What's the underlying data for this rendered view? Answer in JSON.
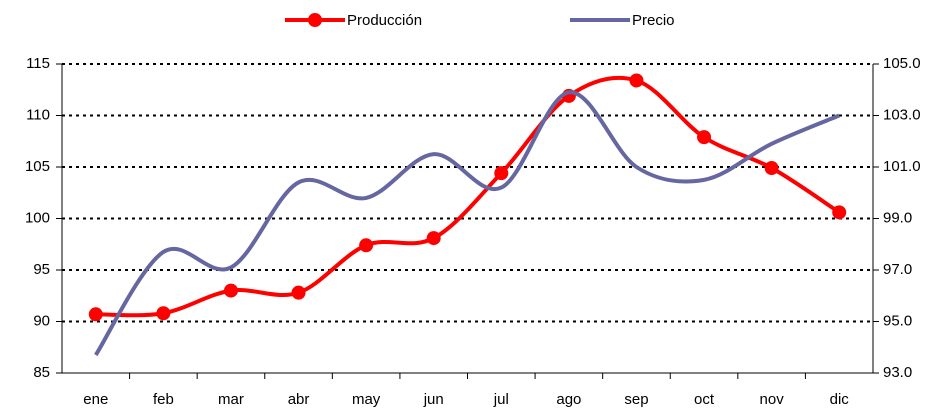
{
  "chart_data": {
    "type": "line",
    "categories": [
      "ene",
      "feb",
      "mar",
      "abr",
      "may",
      "jun",
      "jul",
      "ago",
      "sep",
      "oct",
      "nov",
      "dic"
    ],
    "series": [
      {
        "name": "Producción",
        "color": "#ff0000",
        "values": [
          90.7,
          90.8,
          93.0,
          92.8,
          97.4,
          98.1,
          104.4,
          111.9,
          113.4,
          107.9,
          104.9,
          100.6
        ]
      },
      {
        "name": "Precio",
        "color": "#6666a0",
        "axis": "y2",
        "values": [
          93.7,
          97.7,
          97.1,
          100.4,
          99.8,
          101.5,
          100.2,
          103.9,
          101.0,
          100.5,
          101.9,
          103.0
        ]
      }
    ],
    "ylim": [
      85,
      115
    ],
    "yticks": [
      85,
      90,
      95,
      100,
      105,
      110,
      115
    ],
    "y2lim": [
      93,
      105
    ],
    "y2ticks": [
      {
        "value": 93,
        "label": "93.0"
      },
      {
        "value": 95,
        "label": "95.0"
      },
      {
        "value": 97,
        "label": "97.0"
      },
      {
        "value": 99,
        "label": "99.0"
      },
      {
        "value": 101,
        "label": "101.0"
      },
      {
        "value": 103,
        "label": "103.0"
      },
      {
        "value": 105,
        "label": "105.0"
      }
    ],
    "grid": true,
    "legend": "top",
    "smooth": true
  }
}
